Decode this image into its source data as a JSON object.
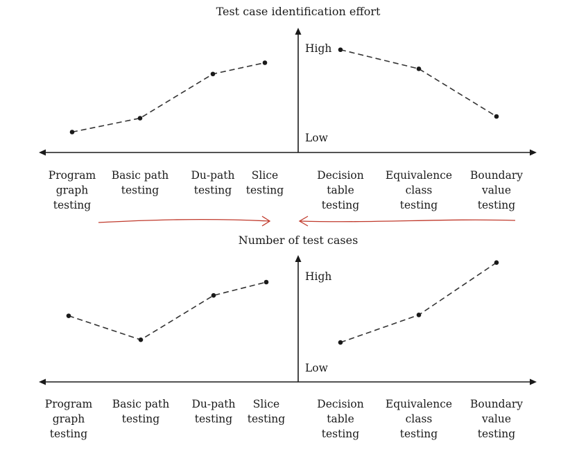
{
  "chart_data": [
    {
      "type": "line",
      "title": "Test case identification effort",
      "y_tick_labels": {
        "high": "High",
        "low": "Low"
      },
      "categories": [
        {
          "lines": [
            "Program",
            "graph",
            "testing"
          ]
        },
        {
          "lines": [
            "Basic path",
            "testing"
          ]
        },
        {
          "lines": [
            "Du-path",
            "testing"
          ]
        },
        {
          "lines": [
            "Slice",
            "testing"
          ]
        },
        {
          "lines": [
            "Decision",
            "table",
            "testing"
          ]
        },
        {
          "lines": [
            "Equivalence",
            "class",
            "testing"
          ]
        },
        {
          "lines": [
            "Boundary",
            "value",
            "testing"
          ]
        }
      ],
      "ylim": [
        0,
        1
      ],
      "series": [
        {
          "points": [
            [
              0,
              0.1
            ],
            [
              1,
              0.26
            ],
            [
              2,
              0.77
            ],
            [
              3,
              0.9
            ]
          ]
        },
        {
          "points": [
            [
              4,
              1.05
            ],
            [
              5,
              0.83
            ],
            [
              6,
              0.28
            ]
          ]
        }
      ],
      "line_style": "dashed",
      "colors": {
        "line": "#333333",
        "axis": "#1a1a1a"
      }
    },
    {
      "type": "line",
      "title": "Number of test cases",
      "y_tick_labels": {
        "high": "High",
        "low": "Low"
      },
      "categories": [
        {
          "lines": [
            "Program",
            "graph",
            "testing"
          ]
        },
        {
          "lines": [
            "Basic path",
            "testing"
          ]
        },
        {
          "lines": [
            "Du-path",
            "testing"
          ]
        },
        {
          "lines": [
            "Slice",
            "testing"
          ]
        },
        {
          "lines": [
            "Decision",
            "table",
            "testing"
          ]
        },
        {
          "lines": [
            "Equivalence",
            "class",
            "testing"
          ]
        },
        {
          "lines": [
            "Boundary",
            "value",
            "testing"
          ]
        }
      ],
      "ylim": [
        0,
        1
      ],
      "series": [
        {
          "points": [
            [
              0,
              0.62
            ],
            [
              1,
              0.35
            ],
            [
              2,
              0.85
            ],
            [
              3,
              1.0
            ]
          ]
        },
        {
          "points": [
            [
              4,
              0.32
            ],
            [
              5,
              0.63
            ],
            [
              6,
              1.22
            ]
          ]
        }
      ],
      "line_style": "dashed",
      "colors": {
        "line": "#333333",
        "axis": "#1a1a1a"
      }
    }
  ],
  "annotations": {
    "arrows_color": "#c0392b",
    "arrows": [
      {
        "direction": "right",
        "from_category": 0,
        "to_category": 3
      },
      {
        "direction": "left",
        "from_category": 6,
        "to_category": 4
      }
    ]
  }
}
